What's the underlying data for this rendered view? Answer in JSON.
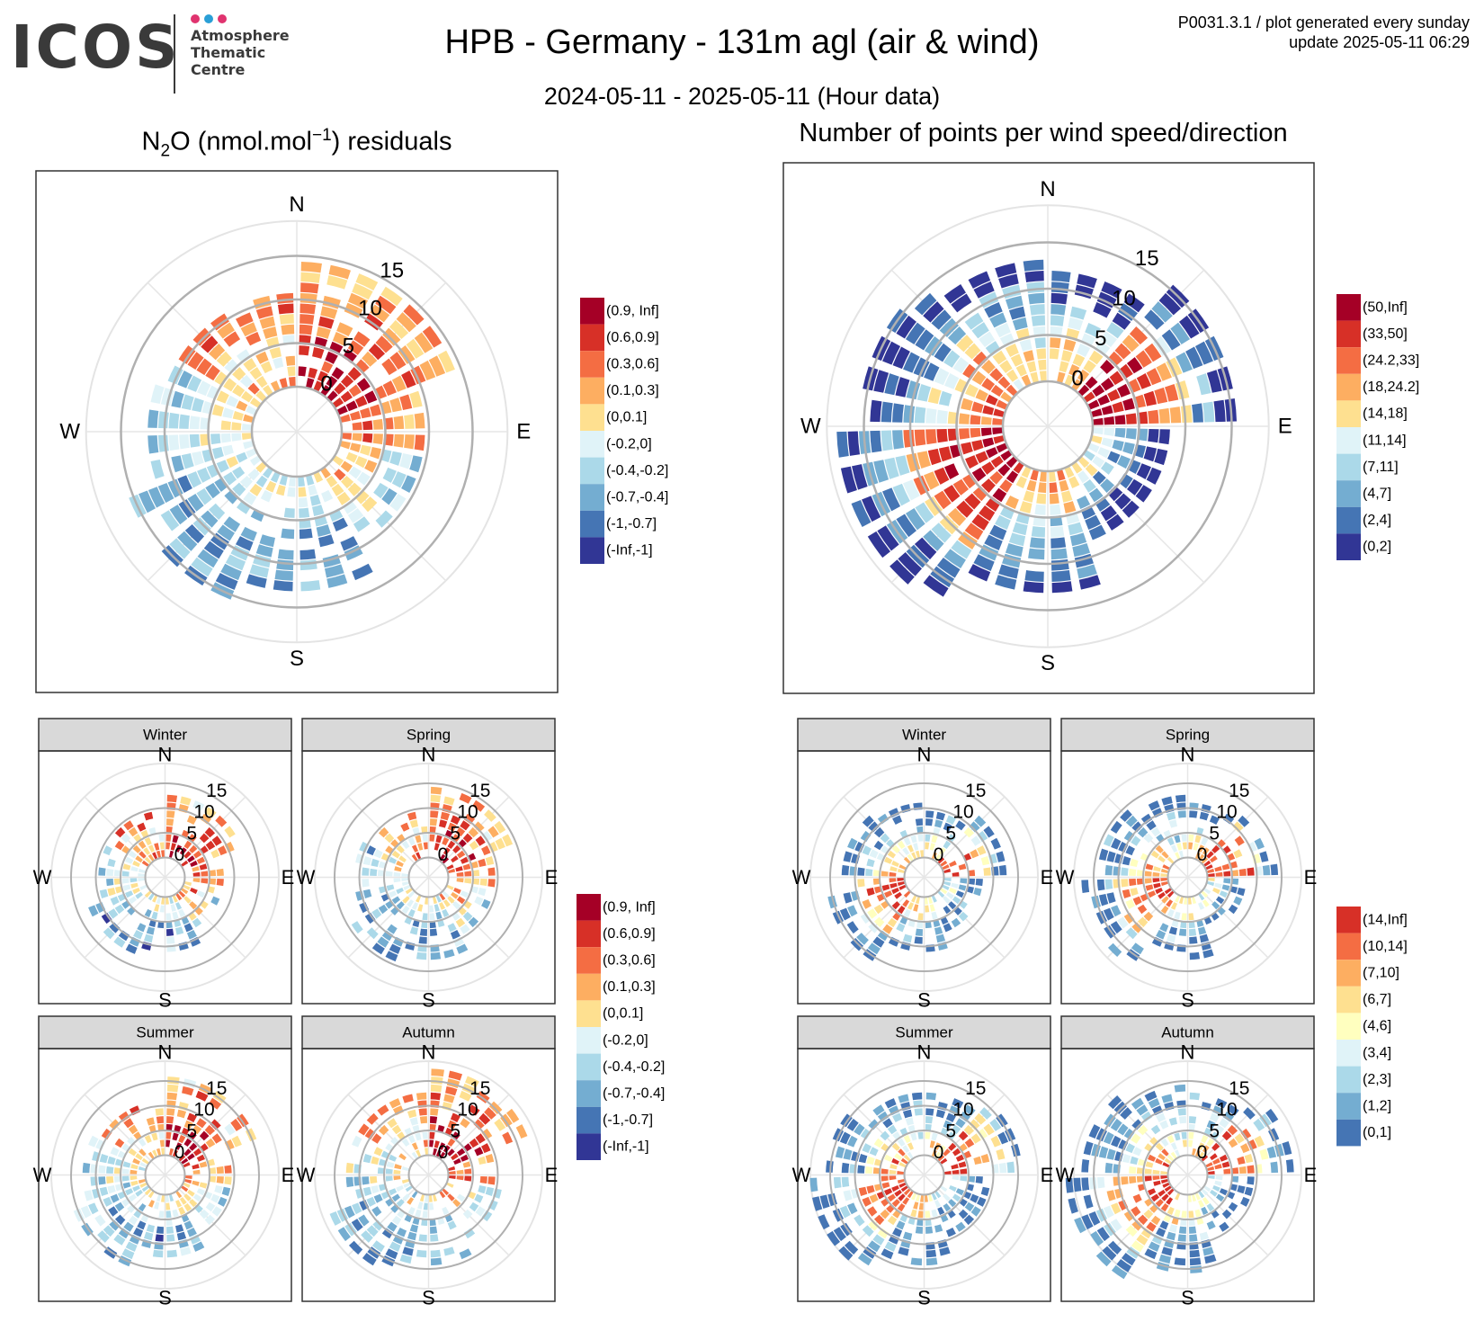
{
  "header": {
    "logo_word": "ICOS",
    "logo_lines": [
      "Atmosphere",
      "Thematic",
      "Centre"
    ],
    "logo_dot_colors": [
      "#e0336f",
      "#2a9fd6",
      "#e0336f"
    ],
    "title": "HPB - Germany - 131m agl (air & wind)",
    "subtitle": "2024-05-11 - 2025-05-11 (Hour data)",
    "corner_line1": "P0031.3.1 / plot generated every sunday",
    "corner_line2": "update  2025-05-11 06:29"
  },
  "panels": {
    "residuals_title_prefix": "N",
    "residuals_title_sub": "2",
    "residuals_title_mid": "O (nmol.mol",
    "residuals_title_sup": "−1",
    "residuals_title_suffix": ") residuals",
    "counts_title": "Number of points per wind speed/direction",
    "seasons": [
      "Winter",
      "Spring",
      "Summer",
      "Autumn"
    ]
  },
  "chart_data": [
    {
      "type": "polar-heatmap",
      "id": "residuals_all",
      "directions": [
        "N",
        "E",
        "S",
        "W"
      ],
      "radial_ticks": [
        0,
        5,
        10,
        15
      ],
      "rlim": [
        0,
        19
      ],
      "legend": {
        "labels": [
          "(0.9, Inf]",
          "(0.6,0.9]",
          "(0.3,0.6]",
          "(0.1,0.3]",
          "(0,0.1]",
          "(-0.2,0]",
          "(-0.4,-0.2]",
          "(-0.7,-0.4]",
          "(-1,-0.7]",
          "(-Inf,-1]"
        ],
        "colors": [
          "#a50026",
          "#d73027",
          "#f46d43",
          "#fdae61",
          "#fee090",
          "#e0f3f8",
          "#abd9e9",
          "#74add1",
          "#4575b4",
          "#313695"
        ]
      },
      "sectors": [
        {
          "dir_from": 0,
          "dir_to": 75,
          "r_max": 14,
          "levels": [
            0,
            1,
            1,
            2,
            2,
            3,
            3
          ]
        },
        {
          "dir_from": 75,
          "dir_to": 105,
          "r_max": 9,
          "levels": [
            2,
            2,
            3,
            3
          ]
        },
        {
          "dir_from": 105,
          "dir_to": 150,
          "r_max": 9,
          "levels": [
            3,
            4,
            5,
            6
          ]
        },
        {
          "dir_from": 150,
          "dir_to": 200,
          "r_max": 12,
          "levels": [
            5,
            6,
            7,
            7,
            7
          ]
        },
        {
          "dir_from": 200,
          "dir_to": 250,
          "r_max": 15,
          "levels": [
            5,
            6,
            6,
            7,
            7,
            7
          ]
        },
        {
          "dir_from": 250,
          "dir_to": 300,
          "r_max": 11,
          "levels": [
            4,
            5,
            5,
            6,
            6
          ]
        },
        {
          "dir_from": 300,
          "dir_to": 360,
          "r_max": 10,
          "levels": [
            3,
            4,
            4,
            3,
            2
          ]
        }
      ]
    },
    {
      "type": "polar-heatmap",
      "id": "counts_all",
      "directions": [
        "N",
        "E",
        "S",
        "W"
      ],
      "radial_ticks": [
        0,
        5,
        10,
        15
      ],
      "rlim": [
        0,
        19
      ],
      "legend": {
        "labels": [
          "(50,Inf]",
          "(33,50]",
          "(24.2,33]",
          "(18,24.2]",
          "(14,18]",
          "(11,14]",
          "(7,11]",
          "(4,7]",
          "(2,4]",
          "(0,2]"
        ],
        "colors": [
          "#a50026",
          "#d73027",
          "#f46d43",
          "#fdae61",
          "#fee090",
          "#e0f3f8",
          "#abd9e9",
          "#74add1",
          "#4575b4",
          "#313695"
        ]
      },
      "sectors": [
        {
          "dir_from": 0,
          "dir_to": 40,
          "r_max": 11,
          "levels": [
            3,
            4,
            5,
            6,
            8,
            9
          ]
        },
        {
          "dir_from": 40,
          "dir_to": 95,
          "r_max": 15,
          "levels": [
            0,
            0,
            1,
            2,
            4,
            7,
            9
          ]
        },
        {
          "dir_from": 95,
          "dir_to": 160,
          "r_max": 8,
          "levels": [
            5,
            7,
            8,
            9
          ]
        },
        {
          "dir_from": 160,
          "dir_to": 210,
          "r_max": 13,
          "levels": [
            3,
            4,
            6,
            7,
            8,
            9
          ]
        },
        {
          "dir_from": 210,
          "dir_to": 270,
          "r_max": 17,
          "levels": [
            0,
            1,
            1,
            2,
            3,
            6,
            8,
            9
          ]
        },
        {
          "dir_from": 270,
          "dir_to": 320,
          "r_max": 15,
          "levels": [
            2,
            3,
            5,
            7,
            8,
            9
          ]
        },
        {
          "dir_from": 320,
          "dir_to": 360,
          "r_max": 12,
          "levels": [
            4,
            5,
            6,
            7,
            9
          ]
        }
      ]
    },
    {
      "type": "polar-heatmap-faceted",
      "id": "residuals_seasonal",
      "facets": [
        "Winter",
        "Spring",
        "Summer",
        "Autumn"
      ],
      "directions": [
        "N",
        "E",
        "S",
        "W"
      ],
      "radial_ticks": [
        0,
        5,
        10,
        15
      ],
      "rlim": [
        0,
        19
      ],
      "legend": {
        "labels": [
          "(0.9, Inf]",
          "(0.6,0.9]",
          "(0.3,0.6]",
          "(0.1,0.3]",
          "(0,0.1]",
          "(-0.2,0]",
          "(-0.4,-0.2]",
          "(-0.7,-0.4]",
          "(-1,-0.7]",
          "(-Inf,-1]"
        ],
        "colors": [
          "#a50026",
          "#d73027",
          "#f46d43",
          "#fdae61",
          "#fee090",
          "#e0f3f8",
          "#abd9e9",
          "#74add1",
          "#4575b4",
          "#313695"
        ]
      }
    },
    {
      "type": "polar-heatmap-faceted",
      "id": "counts_seasonal",
      "facets": [
        "Winter",
        "Spring",
        "Summer",
        "Autumn"
      ],
      "directions": [
        "N",
        "E",
        "S",
        "W"
      ],
      "radial_ticks": [
        0,
        5,
        10,
        15
      ],
      "rlim": [
        0,
        19
      ],
      "legend": {
        "labels": [
          "(14,Inf]",
          "(10,14]",
          "(7,10]",
          "(6,7]",
          "(4,6]",
          "(3,4]",
          "(2,3]",
          "(1,2]",
          "(0,1]"
        ],
        "colors": [
          "#d73027",
          "#f46d43",
          "#fdae61",
          "#fee090",
          "#ffffbf",
          "#e0f3f8",
          "#abd9e9",
          "#74add1",
          "#4575b4"
        ]
      }
    }
  ]
}
